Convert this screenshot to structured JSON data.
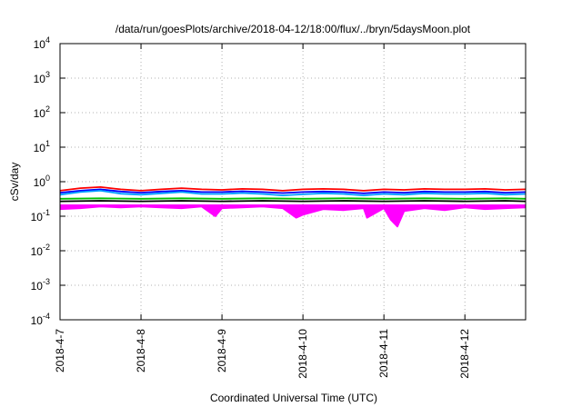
{
  "chart_data": {
    "type": "line",
    "title": "/data/run/goesPlots/archive/2018-04-12/18:00/flux/../bryn/5daysMoon.plot",
    "xlabel": "Coordinated Universal Time (UTC)",
    "ylabel": "cSv/day",
    "yscale": "log",
    "ylim": [
      0.0001,
      10000
    ],
    "xlim": [
      "2018-04-07 00:00",
      "2018-04-12 18:00"
    ],
    "grid": true,
    "x_ticks": [
      "2018-4-7",
      "2018-4-8",
      "2018-4-9",
      "2018-4-10",
      "2018-4-11",
      "2018-4-12"
    ],
    "y_ticks": [
      {
        "base": "10",
        "exp": "-4",
        "value": 0.0001
      },
      {
        "base": "10",
        "exp": "-3",
        "value": 0.001
      },
      {
        "base": "10",
        "exp": "-2",
        "value": 0.01
      },
      {
        "base": "10",
        "exp": "-1",
        "value": 0.1
      },
      {
        "base": "10",
        "exp": "0",
        "value": 1
      },
      {
        "base": "10",
        "exp": "1",
        "value": 10
      },
      {
        "base": "10",
        "exp": "2",
        "value": 100
      },
      {
        "base": "10",
        "exp": "3",
        "value": 1000
      },
      {
        "base": "10",
        "exp": "4",
        "value": 10000
      }
    ],
    "series": [
      {
        "color": "#ff00ff",
        "fill": true,
        "x": [
          "2018-04-07 00:00",
          "2018-04-07 06:00",
          "2018-04-07 12:00",
          "2018-04-07 18:00",
          "2018-04-08 00:00",
          "2018-04-08 06:00",
          "2018-04-08 12:00",
          "2018-04-08 18:00",
          "2018-04-08 22:00",
          "2018-04-09 00:00",
          "2018-04-09 06:00",
          "2018-04-09 12:00",
          "2018-04-09 18:00",
          "2018-04-09 22:00",
          "2018-04-10 00:00",
          "2018-04-10 06:00",
          "2018-04-10 12:00",
          "2018-04-10 18:00",
          "2018-04-10 19:00",
          "2018-04-11 00:00",
          "2018-04-11 02:00",
          "2018-04-11 04:00",
          "2018-04-11 06:00",
          "2018-04-11 12:00",
          "2018-04-11 18:00",
          "2018-04-12 00:00",
          "2018-04-12 06:00",
          "2018-04-12 12:00",
          "2018-04-12 18:00"
        ],
        "y": [
          0.16,
          0.17,
          0.19,
          0.18,
          0.19,
          0.18,
          0.17,
          0.19,
          0.1,
          0.17,
          0.18,
          0.19,
          0.17,
          0.09,
          0.11,
          0.16,
          0.15,
          0.17,
          0.09,
          0.17,
          0.08,
          0.05,
          0.14,
          0.17,
          0.15,
          0.18,
          0.16,
          0.17,
          0.18
        ]
      },
      {
        "color": "#ff0000",
        "x": [
          "2018-04-07 00:00",
          "2018-04-07 06:00",
          "2018-04-07 12:00",
          "2018-04-07 18:00",
          "2018-04-08 00:00",
          "2018-04-08 06:00",
          "2018-04-08 12:00",
          "2018-04-08 18:00",
          "2018-04-09 00:00",
          "2018-04-09 06:00",
          "2018-04-09 12:00",
          "2018-04-09 18:00",
          "2018-04-10 00:00",
          "2018-04-10 06:00",
          "2018-04-10 12:00",
          "2018-04-10 18:00",
          "2018-04-11 00:00",
          "2018-04-11 06:00",
          "2018-04-11 12:00",
          "2018-04-11 18:00",
          "2018-04-12 00:00",
          "2018-04-12 06:00",
          "2018-04-12 12:00",
          "2018-04-12 18:00"
        ],
        "y": [
          0.55,
          0.65,
          0.7,
          0.6,
          0.55,
          0.6,
          0.65,
          0.6,
          0.58,
          0.62,
          0.6,
          0.55,
          0.6,
          0.62,
          0.6,
          0.55,
          0.6,
          0.58,
          0.62,
          0.6,
          0.6,
          0.62,
          0.58,
          0.6
        ]
      },
      {
        "color": "#0000ff",
        "x": [
          "2018-04-07 00:00",
          "2018-04-07 06:00",
          "2018-04-07 12:00",
          "2018-04-07 18:00",
          "2018-04-08 00:00",
          "2018-04-08 06:00",
          "2018-04-08 12:00",
          "2018-04-08 18:00",
          "2018-04-09 00:00",
          "2018-04-09 06:00",
          "2018-04-09 12:00",
          "2018-04-09 18:00",
          "2018-04-10 00:00",
          "2018-04-10 06:00",
          "2018-04-10 12:00",
          "2018-04-10 18:00",
          "2018-04-11 00:00",
          "2018-04-11 06:00",
          "2018-04-11 12:00",
          "2018-04-11 18:00",
          "2018-04-12 00:00",
          "2018-04-12 06:00",
          "2018-04-12 12:00",
          "2018-04-12 18:00"
        ],
        "y": [
          0.48,
          0.55,
          0.6,
          0.52,
          0.48,
          0.52,
          0.55,
          0.5,
          0.5,
          0.53,
          0.5,
          0.47,
          0.5,
          0.52,
          0.5,
          0.46,
          0.5,
          0.48,
          0.52,
          0.5,
          0.5,
          0.52,
          0.48,
          0.5
        ]
      },
      {
        "color": "#00a0ff",
        "x": [
          "2018-04-07 00:00",
          "2018-04-07 06:00",
          "2018-04-07 12:00",
          "2018-04-07 18:00",
          "2018-04-08 00:00",
          "2018-04-08 06:00",
          "2018-04-08 12:00",
          "2018-04-08 18:00",
          "2018-04-09 00:00",
          "2018-04-09 06:00",
          "2018-04-09 12:00",
          "2018-04-09 18:00",
          "2018-04-10 00:00",
          "2018-04-10 06:00",
          "2018-04-10 12:00",
          "2018-04-10 18:00",
          "2018-04-11 00:00",
          "2018-04-11 06:00",
          "2018-04-11 12:00",
          "2018-04-11 18:00",
          "2018-04-12 00:00",
          "2018-04-12 06:00",
          "2018-04-12 12:00",
          "2018-04-12 18:00"
        ],
        "y": [
          0.42,
          0.5,
          0.55,
          0.45,
          0.42,
          0.46,
          0.5,
          0.44,
          0.44,
          0.47,
          0.44,
          0.4,
          0.43,
          0.46,
          0.44,
          0.4,
          0.44,
          0.42,
          0.46,
          0.44,
          0.44,
          0.46,
          0.42,
          0.44
        ]
      },
      {
        "color": "#00c000",
        "x": [
          "2018-04-07 00:00",
          "2018-04-07 12:00",
          "2018-04-08 00:00",
          "2018-04-08 12:00",
          "2018-04-09 00:00",
          "2018-04-09 12:00",
          "2018-04-10 00:00",
          "2018-04-10 12:00",
          "2018-04-11 00:00",
          "2018-04-11 12:00",
          "2018-04-12 00:00",
          "2018-04-12 12:00",
          "2018-04-12 18:00"
        ],
        "y": [
          0.32,
          0.33,
          0.32,
          0.33,
          0.32,
          0.33,
          0.32,
          0.33,
          0.32,
          0.33,
          0.32,
          0.33,
          0.32
        ]
      },
      {
        "color": "#000000",
        "x": [
          "2018-04-07 00:00",
          "2018-04-07 12:00",
          "2018-04-08 00:00",
          "2018-04-08 12:00",
          "2018-04-09 00:00",
          "2018-04-09 12:00",
          "2018-04-10 00:00",
          "2018-04-10 12:00",
          "2018-04-11 00:00",
          "2018-04-11 12:00",
          "2018-04-12 00:00",
          "2018-04-12 12:00",
          "2018-04-12 18:00"
        ],
        "y": [
          0.27,
          0.28,
          0.27,
          0.28,
          0.27,
          0.28,
          0.27,
          0.28,
          0.27,
          0.28,
          0.27,
          0.28,
          0.27
        ]
      }
    ]
  }
}
